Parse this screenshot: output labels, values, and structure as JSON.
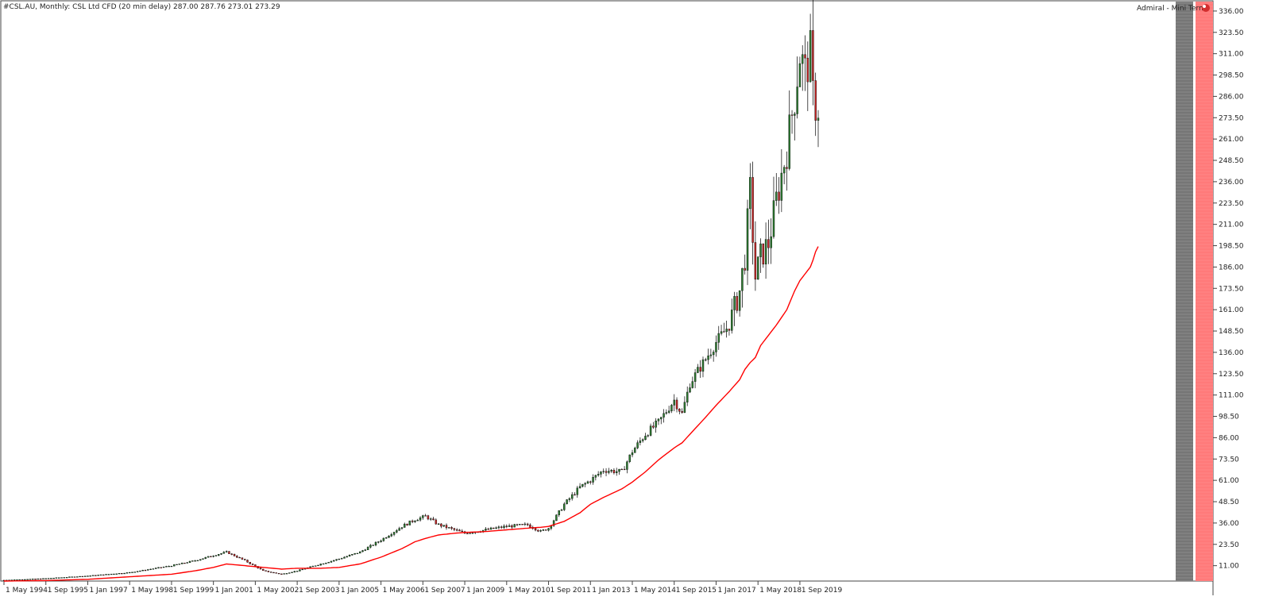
{
  "header": {
    "symbol_line": "#CSL.AU, Monthly:  CSL Ltd CFD (20 min delay)  287.00 287.76 273.01 273.29",
    "panel_label": "Admiral - Mini Termi"
  },
  "colors": {
    "bull": "#2e7d32",
    "bear": "#c62828",
    "wick": "#000000",
    "moving_average": "#ff0000",
    "strip_gray": "#808080",
    "strip_red": "#ff8080"
  },
  "chart_data": {
    "type": "candlestick",
    "title": "",
    "xlabel": "",
    "ylabel": "",
    "ylim": [
      2,
      342
    ],
    "x_range": [
      "1994-05",
      "2020-04"
    ],
    "y_ticks": [
      "336.00",
      "323.50",
      "311.00",
      "298.50",
      "286.00",
      "273.50",
      "261.00",
      "248.50",
      "236.00",
      "223.50",
      "211.00",
      "198.50",
      "186.00",
      "173.50",
      "161.00",
      "148.50",
      "136.00",
      "123.50",
      "111.00",
      "98.50",
      "86.00",
      "73.50",
      "61.00",
      "48.50",
      "36.00",
      "23.50",
      "11.00"
    ],
    "x_ticks": [
      "1 May 1994",
      "1 Sep 1995",
      "1 Jan 1997",
      "1 May 1998",
      "1 Sep 1999",
      "1 Jan 2001",
      "1 May 2002",
      "1 Sep 2003",
      "1 Jan 2005",
      "1 May 2006",
      "1 Sep 2007",
      "1 Jan 2009",
      "1 May 2010",
      "1 Sep 2011",
      "1 Jan 2013",
      "1 May 2014",
      "1 Sep 2015",
      "1 Jan 2017",
      "1 May 2018",
      "1 Sep 2019"
    ],
    "price_anchors": {
      "x": [
        "1994-05",
        "1995-09",
        "1997-01",
        "1998-05",
        "1999-09",
        "2000-06",
        "2001-01",
        "2001-06",
        "2002-01",
        "2002-08",
        "2003-03",
        "2003-09",
        "2004-06",
        "2005-01",
        "2005-09",
        "2006-05",
        "2007-01",
        "2007-06",
        "2007-10",
        "2008-03",
        "2008-09",
        "2009-01",
        "2009-09",
        "2010-05",
        "2011-01",
        "2011-06",
        "2011-09",
        "2012-03",
        "2012-09",
        "2013-01",
        "2013-06",
        "2014-01",
        "2014-05",
        "2014-10",
        "2015-03",
        "2015-09",
        "2015-12",
        "2016-03",
        "2016-09",
        "2017-01",
        "2017-06",
        "2017-10",
        "2017-12",
        "2018-02",
        "2018-04",
        "2018-06",
        "2018-09",
        "2018-12",
        "2019-04",
        "2019-07",
        "2019-09",
        "2019-11",
        "2020-01",
        "2020-02",
        "2020-03",
        "2020-04"
      ],
      "y": [
        2.5,
        3.5,
        5,
        7,
        11,
        14,
        17,
        19,
        14,
        8,
        6,
        8,
        12,
        15,
        19,
        26,
        34,
        38,
        40,
        35,
        32,
        30,
        32,
        34,
        35,
        31,
        33,
        47,
        57,
        61,
        67,
        66,
        78,
        88,
        95,
        108,
        100,
        118,
        132,
        142,
        152,
        172,
        192,
        230,
        180,
        192,
        200,
        225,
        255,
        286,
        311,
        300,
        311,
        286,
        281,
        273.29
      ]
    },
    "moving_average": {
      "x": [
        "1994-05",
        "1995-09",
        "1997-01",
        "1998-05",
        "1999-09",
        "2000-06",
        "2001-01",
        "2001-06",
        "2002-01",
        "2002-08",
        "2003-03",
        "2003-09",
        "2004-06",
        "2005-01",
        "2005-09",
        "2006-05",
        "2007-01",
        "2007-06",
        "2007-10",
        "2008-03",
        "2008-09",
        "2009-01",
        "2009-09",
        "2010-05",
        "2011-01",
        "2011-06",
        "2011-09",
        "2012-03",
        "2012-09",
        "2013-01",
        "2013-06",
        "2014-01",
        "2014-05",
        "2014-10",
        "2015-03",
        "2015-09",
        "2015-12",
        "2016-03",
        "2016-09",
        "2017-01",
        "2017-06",
        "2017-10",
        "2017-12",
        "2018-02",
        "2018-04",
        "2018-06",
        "2018-09",
        "2018-12",
        "2019-04",
        "2019-07",
        "2019-09",
        "2019-11",
        "2020-01",
        "2020-02",
        "2020-03",
        "2020-04"
      ],
      "y": [
        2,
        2.3,
        3,
        4.5,
        6,
        8,
        10,
        12,
        11,
        10,
        9,
        9.5,
        9.5,
        10,
        12,
        16,
        21,
        25,
        27,
        29,
        30,
        30.5,
        31,
        32,
        33,
        33.5,
        34,
        37,
        42,
        47,
        51,
        56,
        60,
        66,
        73,
        80,
        83,
        88,
        98,
        105,
        113,
        120,
        126,
        130,
        133,
        140,
        146,
        152,
        161,
        172,
        178,
        182,
        186,
        190,
        195,
        198
      ]
    }
  }
}
